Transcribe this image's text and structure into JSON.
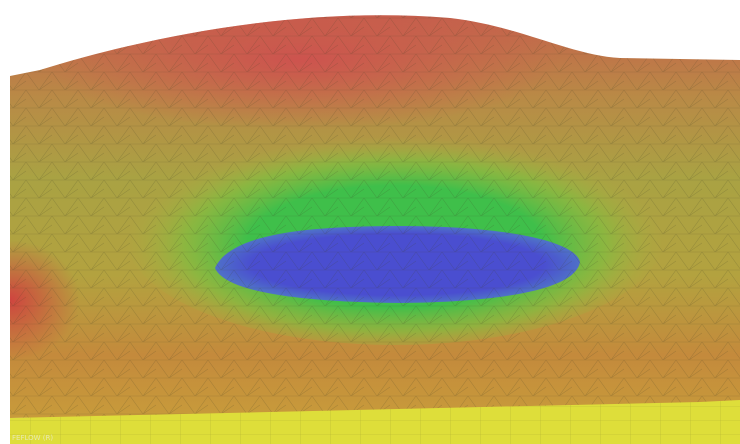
{
  "watermark": "FEFLOW (R)"
}
